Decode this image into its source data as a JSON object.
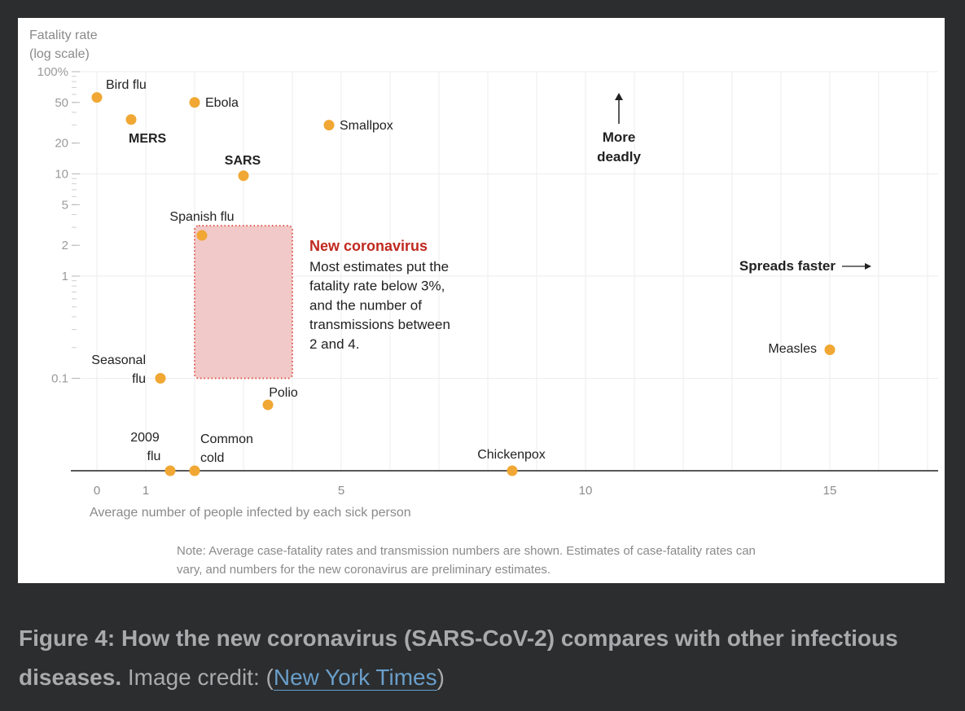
{
  "chart_data": {
    "type": "scatter",
    "title": "",
    "ylabel_lines": [
      "Fatality rate",
      "(log scale)"
    ],
    "xlabel": "Average number of people infected by each sick person",
    "y_scale": "log",
    "ylim": [
      0.008,
      100
    ],
    "xlim": [
      -1,
      17.7
    ],
    "y_ticks": [
      {
        "value": 100,
        "label": "100%"
      },
      {
        "value": 50,
        "label": "50"
      },
      {
        "value": 20,
        "label": "20"
      },
      {
        "value": 10,
        "label": "10"
      },
      {
        "value": 5,
        "label": "5"
      },
      {
        "value": 2,
        "label": "2"
      },
      {
        "value": 1,
        "label": "1"
      },
      {
        "value": 0.1,
        "label": "0.1"
      }
    ],
    "x_ticks": [
      {
        "value": 0,
        "label": "0"
      },
      {
        "value": 1,
        "label": "1"
      },
      {
        "value": 5,
        "label": "5"
      },
      {
        "value": 10,
        "label": "10"
      },
      {
        "value": 15,
        "label": "15"
      }
    ],
    "points": [
      {
        "name": "Bird flu",
        "label_lines": [
          "Bird flu"
        ],
        "x": 0,
        "y": 56,
        "bold": false
      },
      {
        "name": "MERS",
        "label_lines": [
          "MERS"
        ],
        "x": 0.7,
        "y": 34,
        "bold": true
      },
      {
        "name": "Ebola",
        "label_lines": [
          "Ebola"
        ],
        "x": 2,
        "y": 50,
        "bold": false
      },
      {
        "name": "Smallpox",
        "label_lines": [
          "Smallpox"
        ],
        "x": 4.75,
        "y": 30,
        "bold": false
      },
      {
        "name": "SARS",
        "label_lines": [
          "SARS"
        ],
        "x": 3,
        "y": 9.6,
        "bold": true
      },
      {
        "name": "Spanish flu",
        "label_lines": [
          "Spanish flu"
        ],
        "x": 2.15,
        "y": 2.5,
        "bold": false
      },
      {
        "name": "Seasonal flu",
        "label_lines": [
          "Seasonal",
          "flu"
        ],
        "x": 1.3,
        "y": 0.1,
        "bold": false
      },
      {
        "name": "Polio",
        "label_lines": [
          "Polio"
        ],
        "x": 3.5,
        "y": 0.055,
        "bold": false
      },
      {
        "name": "Measles",
        "label_lines": [
          "Measles"
        ],
        "x": 15,
        "y": 0.19,
        "bold": false
      },
      {
        "name": "2009 flu",
        "label_lines": [
          "2009",
          "flu"
        ],
        "x": 1.5,
        "y": null,
        "bold": false
      },
      {
        "name": "Common cold",
        "label_lines": [
          "Common",
          "cold"
        ],
        "x": 2,
        "y": null,
        "bold": false
      },
      {
        "name": "Chickenpox",
        "label_lines": [
          "Chickenpox"
        ],
        "x": 8.5,
        "y": null,
        "bold": false
      }
    ],
    "highlight_region": {
      "name": "New coronavirus",
      "x_range": [
        2,
        4
      ],
      "y_range": [
        0.1,
        3
      ],
      "title": "New coronavirus",
      "body_lines": [
        "Most estimates put the",
        "fatality rate below 3%,",
        "and the number of",
        "transmissions between",
        "2 and 4."
      ]
    },
    "annotations": {
      "more_deadly_lines": [
        "More",
        "deadly"
      ],
      "spreads_faster": "Spreads faster"
    },
    "note_lines": [
      "Note: Average case-fatality rates and transmission numbers are shown. Estimates of case-fatality rates can",
      "vary, and numbers for the new coronavirus are preliminary estimates."
    ]
  },
  "caption": {
    "bold": "Figure 4: How the new coronavirus (SARS-CoV-2) compares with other infectious diseases.",
    "plain": " Image credit: (",
    "link": "New York Times",
    "close": ")"
  },
  "colors": {
    "point": "#f0a733",
    "highlight_fill": "#f2c9c9",
    "highlight_border": "#e0574a",
    "accent_red": "#c0291f",
    "grid": "#ededed"
  }
}
